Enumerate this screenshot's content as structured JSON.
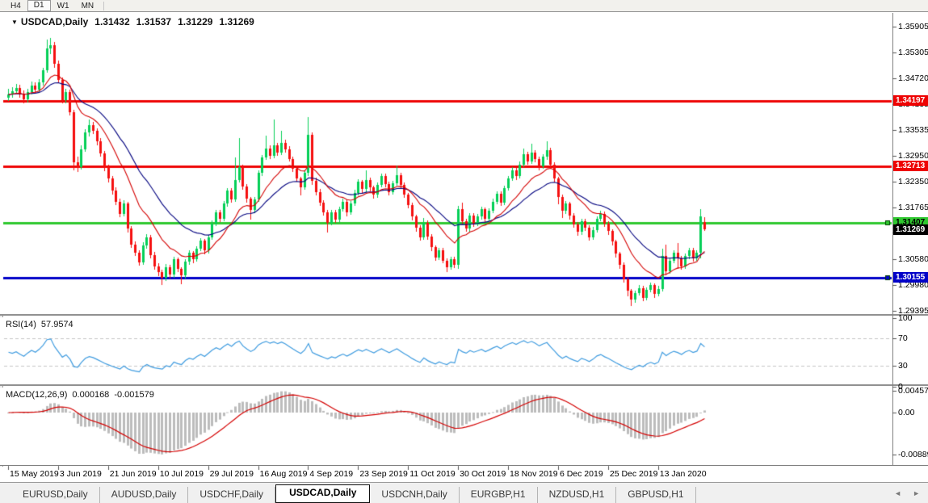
{
  "toolbar": {
    "timeframes": [
      {
        "label": "H4",
        "active": false
      },
      {
        "label": "D1",
        "active": true
      },
      {
        "label": "W1",
        "active": false
      },
      {
        "label": "MN",
        "active": false
      }
    ]
  },
  "chart_data": {
    "type": "candlestick",
    "title": {
      "symbol": "USDCAD,Daily",
      "open": "1.31432",
      "high": "1.31537",
      "low": "1.31229",
      "close": "1.31269"
    },
    "y_axis_labels": [
      "1.35905",
      "1.35305",
      "1.34720",
      "1.34135",
      "1.33535",
      "1.32950",
      "1.32350",
      "1.31765",
      "1.31180",
      "1.30580",
      "1.29980",
      "1.29395"
    ],
    "x_axis_labels": [
      "15 May 2019",
      "3 Jun 2019",
      "21 Jun 2019",
      "10 Jul 2019",
      "29 Jul 2019",
      "16 Aug 2019",
      "4 Sep 2019",
      "23 Sep 2019",
      "11 Oct 2019",
      "30 Oct 2019",
      "18 Nov 2019",
      "6 Dec 2019",
      "25 Dec 2019",
      "13 Jan 2020"
    ],
    "x_label_candle_indices": [
      0,
      13,
      26,
      39,
      52,
      65,
      78,
      91,
      104,
      117,
      130,
      143,
      156,
      169
    ],
    "axis_range": {
      "top_price": 1.35905,
      "bottom_price": 1.29395
    },
    "horizontal_lines": [
      {
        "price": 1.34197,
        "label": "1.34197",
        "color": "#ee0303",
        "text_color": "#ffffff",
        "handle": false
      },
      {
        "price": 1.32713,
        "label": "1.32713",
        "color": "#ee0303",
        "text_color": "#ffffff",
        "handle": false
      },
      {
        "price": 1.31407,
        "label": "1.31407",
        "color": "#2fc82f",
        "text_color": "#000000",
        "handle": true
      },
      {
        "price": 1.30155,
        "label": "1.30155",
        "color": "#0202c8",
        "text_color": "#ffffff",
        "handle": true
      }
    ],
    "current_price_badge": {
      "price": 1.31269,
      "label": "1.31269",
      "color": "#000000",
      "text_color": "#ffffff"
    },
    "colors": {
      "bull": "#05cf57",
      "bear": "#f50f0f",
      "ma_fast": "#d40000",
      "ma_slow": "#00007f"
    },
    "moving_averages": [
      {
        "period": 13,
        "color": "#d40000"
      },
      {
        "period": 26,
        "color": "#00007f"
      }
    ],
    "candles": [
      [
        1.3428,
        1.3448,
        1.342,
        1.3435
      ],
      [
        1.3435,
        1.3452,
        1.3428,
        1.3442
      ],
      [
        1.3442,
        1.3459,
        1.3436,
        1.345
      ],
      [
        1.345,
        1.3457,
        1.3428,
        1.3436
      ],
      [
        1.3436,
        1.3444,
        1.3415,
        1.3424
      ],
      [
        1.3424,
        1.3449,
        1.3418,
        1.3441
      ],
      [
        1.3441,
        1.3464,
        1.3434,
        1.3456
      ],
      [
        1.3456,
        1.3462,
        1.3438,
        1.3446
      ],
      [
        1.3446,
        1.347,
        1.344,
        1.3463
      ],
      [
        1.3463,
        1.3497,
        1.3456,
        1.349
      ],
      [
        1.349,
        1.356,
        1.3484,
        1.354
      ],
      [
        1.354,
        1.3565,
        1.3528,
        1.3548
      ],
      [
        1.3548,
        1.3556,
        1.3496,
        1.3505
      ],
      [
        1.3505,
        1.3512,
        1.346,
        1.3468
      ],
      [
        1.3468,
        1.3474,
        1.3414,
        1.3422
      ],
      [
        1.3422,
        1.3448,
        1.3415,
        1.344
      ],
      [
        1.344,
        1.3446,
        1.3386,
        1.3395
      ],
      [
        1.3395,
        1.34,
        1.3262,
        1.328
      ],
      [
        1.328,
        1.3292,
        1.3256,
        1.3268
      ],
      [
        1.3268,
        1.3318,
        1.3262,
        1.331
      ],
      [
        1.331,
        1.3355,
        1.3304,
        1.3348
      ],
      [
        1.3348,
        1.3378,
        1.334,
        1.3365
      ],
      [
        1.3365,
        1.3372,
        1.3344,
        1.3352
      ],
      [
        1.3352,
        1.3358,
        1.332,
        1.3328
      ],
      [
        1.3328,
        1.3335,
        1.3292,
        1.33
      ],
      [
        1.33,
        1.3306,
        1.326,
        1.3268
      ],
      [
        1.3268,
        1.3275,
        1.3234,
        1.3242
      ],
      [
        1.3242,
        1.3248,
        1.3206,
        1.3215
      ],
      [
        1.3215,
        1.3222,
        1.3182,
        1.319
      ],
      [
        1.319,
        1.3196,
        1.3154,
        1.3162
      ],
      [
        1.3162,
        1.3192,
        1.3155,
        1.3185
      ],
      [
        1.3185,
        1.319,
        1.312,
        1.3128
      ],
      [
        1.3128,
        1.3134,
        1.3084,
        1.3092
      ],
      [
        1.3092,
        1.3098,
        1.3064,
        1.3072
      ],
      [
        1.3072,
        1.3078,
        1.3042,
        1.305
      ],
      [
        1.305,
        1.3096,
        1.3044,
        1.309
      ],
      [
        1.309,
        1.3115,
        1.3082,
        1.3108
      ],
      [
        1.3108,
        1.3114,
        1.306,
        1.3068
      ],
      [
        1.3068,
        1.3074,
        1.3034,
        1.3042
      ],
      [
        1.3042,
        1.3048,
        1.3018,
        1.3028
      ],
      [
        1.3028,
        1.3034,
        1.2998,
        1.3015
      ],
      [
        1.3015,
        1.3046,
        1.3008,
        1.304
      ],
      [
        1.304,
        1.3045,
        1.3014,
        1.3022
      ],
      [
        1.3022,
        1.3064,
        1.3016,
        1.3058
      ],
      [
        1.3058,
        1.3062,
        1.3028,
        1.3035
      ],
      [
        1.3035,
        1.304,
        1.3002,
        1.302
      ],
      [
        1.302,
        1.3058,
        1.3014,
        1.3052
      ],
      [
        1.3052,
        1.3078,
        1.3045,
        1.3072
      ],
      [
        1.3072,
        1.3077,
        1.305,
        1.3058
      ],
      [
        1.3058,
        1.3088,
        1.3052,
        1.3082
      ],
      [
        1.3082,
        1.3106,
        1.3076,
        1.31
      ],
      [
        1.31,
        1.3105,
        1.307,
        1.3078
      ],
      [
        1.3078,
        1.3114,
        1.3072,
        1.3108
      ],
      [
        1.3108,
        1.3146,
        1.3102,
        1.314
      ],
      [
        1.314,
        1.3171,
        1.3134,
        1.3165
      ],
      [
        1.3165,
        1.317,
        1.3142,
        1.315
      ],
      [
        1.315,
        1.3191,
        1.3144,
        1.3185
      ],
      [
        1.3185,
        1.3221,
        1.3179,
        1.3215
      ],
      [
        1.3215,
        1.322,
        1.3186,
        1.3195
      ],
      [
        1.3195,
        1.329,
        1.3188,
        1.324
      ],
      [
        1.324,
        1.3336,
        1.3234,
        1.3268
      ],
      [
        1.3268,
        1.3274,
        1.3216,
        1.3225
      ],
      [
        1.3225,
        1.323,
        1.3188,
        1.3196
      ],
      [
        1.3196,
        1.32,
        1.3148,
        1.317
      ],
      [
        1.317,
        1.3201,
        1.3164,
        1.3195
      ],
      [
        1.3195,
        1.3262,
        1.319,
        1.3255
      ],
      [
        1.3255,
        1.3297,
        1.3249,
        1.329
      ],
      [
        1.329,
        1.334,
        1.3284,
        1.3312
      ],
      [
        1.3312,
        1.3318,
        1.3286,
        1.3295
      ],
      [
        1.3295,
        1.3378,
        1.3289,
        1.3318
      ],
      [
        1.3318,
        1.3324,
        1.3294,
        1.3302
      ],
      [
        1.3302,
        1.3352,
        1.3296,
        1.3325
      ],
      [
        1.3325,
        1.3331,
        1.3302,
        1.331
      ],
      [
        1.331,
        1.3316,
        1.328,
        1.3288
      ],
      [
        1.3288,
        1.3293,
        1.3257,
        1.3265
      ],
      [
        1.3265,
        1.327,
        1.3234,
        1.3242
      ],
      [
        1.3242,
        1.3247,
        1.3205,
        1.3222
      ],
      [
        1.3222,
        1.3261,
        1.3216,
        1.3255
      ],
      [
        1.3255,
        1.3384,
        1.3249,
        1.3342
      ],
      [
        1.3342,
        1.3348,
        1.3228,
        1.3238
      ],
      [
        1.3238,
        1.3244,
        1.3204,
        1.3212
      ],
      [
        1.3212,
        1.3218,
        1.318,
        1.3188
      ],
      [
        1.3188,
        1.3193,
        1.3157,
        1.3165
      ],
      [
        1.3165,
        1.317,
        1.3118,
        1.3142
      ],
      [
        1.3142,
        1.3171,
        1.3136,
        1.3165
      ],
      [
        1.3165,
        1.317,
        1.314,
        1.3148
      ],
      [
        1.3148,
        1.3178,
        1.3142,
        1.3172
      ],
      [
        1.3172,
        1.3196,
        1.3166,
        1.319
      ],
      [
        1.319,
        1.3195,
        1.3157,
        1.3165
      ],
      [
        1.3165,
        1.3191,
        1.3159,
        1.3185
      ],
      [
        1.3185,
        1.3216,
        1.3179,
        1.321
      ],
      [
        1.321,
        1.3241,
        1.3204,
        1.3235
      ],
      [
        1.3235,
        1.324,
        1.321,
        1.3218
      ],
      [
        1.3218,
        1.3262,
        1.3212,
        1.324
      ],
      [
        1.324,
        1.3245,
        1.3214,
        1.3222
      ],
      [
        1.3222,
        1.3227,
        1.3197,
        1.3205
      ],
      [
        1.3205,
        1.3234,
        1.3199,
        1.3228
      ],
      [
        1.3228,
        1.3254,
        1.3222,
        1.3248
      ],
      [
        1.3248,
        1.3253,
        1.3222,
        1.323
      ],
      [
        1.323,
        1.3235,
        1.3204,
        1.3212
      ],
      [
        1.3212,
        1.3238,
        1.3206,
        1.3232
      ],
      [
        1.3232,
        1.3272,
        1.3226,
        1.325
      ],
      [
        1.325,
        1.3255,
        1.322,
        1.3228
      ],
      [
        1.3228,
        1.3233,
        1.3197,
        1.3205
      ],
      [
        1.3205,
        1.321,
        1.3174,
        1.3182
      ],
      [
        1.3182,
        1.3187,
        1.3147,
        1.3155
      ],
      [
        1.3155,
        1.316,
        1.3122,
        1.313
      ],
      [
        1.313,
        1.3135,
        1.31,
        1.3108
      ],
      [
        1.3108,
        1.3152,
        1.3102,
        1.3142
      ],
      [
        1.3142,
        1.3147,
        1.3102,
        1.311
      ],
      [
        1.311,
        1.3115,
        1.3077,
        1.3085
      ],
      [
        1.3085,
        1.309,
        1.3054,
        1.3062
      ],
      [
        1.3062,
        1.3084,
        1.3056,
        1.3078
      ],
      [
        1.3078,
        1.3083,
        1.3047,
        1.3055
      ],
      [
        1.3055,
        1.306,
        1.3028,
        1.304
      ],
      [
        1.304,
        1.3064,
        1.3034,
        1.3058
      ],
      [
        1.3058,
        1.3063,
        1.3037,
        1.3045
      ],
      [
        1.3045,
        1.318,
        1.3035,
        1.3172
      ],
      [
        1.3172,
        1.3188,
        1.3138,
        1.3145
      ],
      [
        1.3145,
        1.315,
        1.312,
        1.3128
      ],
      [
        1.3128,
        1.3164,
        1.3122,
        1.3158
      ],
      [
        1.3158,
        1.3163,
        1.3132,
        1.314
      ],
      [
        1.314,
        1.3161,
        1.3134,
        1.3155
      ],
      [
        1.3155,
        1.3178,
        1.3149,
        1.3172
      ],
      [
        1.3172,
        1.3177,
        1.3142,
        1.315
      ],
      [
        1.315,
        1.3174,
        1.3144,
        1.3168
      ],
      [
        1.3168,
        1.3196,
        1.3162,
        1.319
      ],
      [
        1.319,
        1.3214,
        1.3184,
        1.3208
      ],
      [
        1.3208,
        1.3213,
        1.318,
        1.3188
      ],
      [
        1.3188,
        1.3226,
        1.3182,
        1.322
      ],
      [
        1.322,
        1.3248,
        1.3214,
        1.3242
      ],
      [
        1.3242,
        1.3268,
        1.3236,
        1.3262
      ],
      [
        1.3262,
        1.3267,
        1.324,
        1.3248
      ],
      [
        1.3248,
        1.3281,
        1.3242,
        1.3275
      ],
      [
        1.3275,
        1.3312,
        1.3269,
        1.3298
      ],
      [
        1.3298,
        1.3303,
        1.3274,
        1.3282
      ],
      [
        1.3282,
        1.3322,
        1.3276,
        1.3302
      ],
      [
        1.3302,
        1.3307,
        1.328,
        1.3288
      ],
      [
        1.3288,
        1.3293,
        1.3262,
        1.327
      ],
      [
        1.327,
        1.3298,
        1.3264,
        1.3292
      ],
      [
        1.3292,
        1.3328,
        1.3286,
        1.3308
      ],
      [
        1.3308,
        1.3313,
        1.3267,
        1.3275
      ],
      [
        1.3275,
        1.328,
        1.3234,
        1.3242
      ],
      [
        1.3242,
        1.3247,
        1.3185,
        1.32
      ],
      [
        1.32,
        1.3205,
        1.3152,
        1.3168
      ],
      [
        1.3168,
        1.3191,
        1.3162,
        1.3185
      ],
      [
        1.3185,
        1.319,
        1.315,
        1.3158
      ],
      [
        1.3158,
        1.3163,
        1.313,
        1.3138
      ],
      [
        1.3138,
        1.3143,
        1.3112,
        1.312
      ],
      [
        1.312,
        1.3151,
        1.3114,
        1.3145
      ],
      [
        1.3145,
        1.315,
        1.3122,
        1.313
      ],
      [
        1.313,
        1.3135,
        1.31,
        1.3108
      ],
      [
        1.3108,
        1.3131,
        1.3102,
        1.3125
      ],
      [
        1.3125,
        1.3156,
        1.3119,
        1.315
      ],
      [
        1.315,
        1.3168,
        1.3144,
        1.3162
      ],
      [
        1.3162,
        1.3167,
        1.3132,
        1.314
      ],
      [
        1.314,
        1.3145,
        1.3114,
        1.3122
      ],
      [
        1.3122,
        1.3127,
        1.309,
        1.3098
      ],
      [
        1.3098,
        1.3103,
        1.3062,
        1.307
      ],
      [
        1.307,
        1.3075,
        1.3037,
        1.3045
      ],
      [
        1.3045,
        1.305,
        1.3004,
        1.3012
      ],
      [
        1.3012,
        1.3017,
        1.2972,
        1.2985
      ],
      [
        1.2985,
        1.299,
        1.2952,
        1.2965
      ],
      [
        1.2965,
        1.2986,
        1.2958,
        1.298
      ],
      [
        1.298,
        1.2998,
        1.2974,
        1.2992
      ],
      [
        1.2992,
        1.2997,
        1.2962,
        1.297
      ],
      [
        1.297,
        1.2994,
        1.2964,
        1.2988
      ],
      [
        1.2988,
        1.3004,
        1.2982,
        1.2998
      ],
      [
        1.2998,
        1.3003,
        1.297,
        1.2978
      ],
      [
        1.2978,
        1.2996,
        1.2972,
        1.299
      ],
      [
        1.299,
        1.3082,
        1.2984,
        1.3065
      ],
      [
        1.3065,
        1.3092,
        1.3022,
        1.303
      ],
      [
        1.303,
        1.3061,
        1.3024,
        1.3055
      ],
      [
        1.3055,
        1.3078,
        1.3049,
        1.3072
      ],
      [
        1.3072,
        1.3095,
        1.3036,
        1.306
      ],
      [
        1.306,
        1.3065,
        1.3034,
        1.3042
      ],
      [
        1.3042,
        1.3071,
        1.3036,
        1.3065
      ],
      [
        1.3065,
        1.3084,
        1.3059,
        1.3078
      ],
      [
        1.3078,
        1.3083,
        1.3052,
        1.306
      ],
      [
        1.306,
        1.3078,
        1.3054,
        1.3072
      ],
      [
        1.3072,
        1.3172,
        1.306,
        1.3155
      ],
      [
        1.31432,
        1.31537,
        1.31229,
        1.31269
      ]
    ],
    "indicators": {
      "rsi": {
        "name": "RSI(14)",
        "period": 14,
        "current": "57.9574",
        "axis_labels": [
          "100",
          "70",
          "30",
          "0"
        ],
        "guide_levels": [
          70,
          30
        ],
        "color": "#3e9bdf"
      },
      "macd": {
        "name": "MACD(12,26,9)",
        "fast": 12,
        "slow": 26,
        "signal": 9,
        "current_macd": "0.000168",
        "current_signal": "-0.001579",
        "axis_labels": [
          "0.004572",
          "0.00",
          "-0.008893"
        ],
        "histogram_color": "#bcbcbc",
        "signal_color": "#d40000"
      }
    }
  },
  "tabbar": {
    "tabs": [
      {
        "label": "EURUSD,Daily",
        "active": false
      },
      {
        "label": "AUDUSD,Daily",
        "active": false
      },
      {
        "label": "USDCHF,Daily",
        "active": false
      },
      {
        "label": "USDCAD,Daily",
        "active": true
      },
      {
        "label": "USDCNH,Daily",
        "active": false
      },
      {
        "label": "EURGBP,H1",
        "active": false
      },
      {
        "label": "NZDUSD,H1",
        "active": false
      },
      {
        "label": "GBPUSD,H1",
        "active": false
      }
    ],
    "nav_left": "◄",
    "nav_right": "►"
  }
}
